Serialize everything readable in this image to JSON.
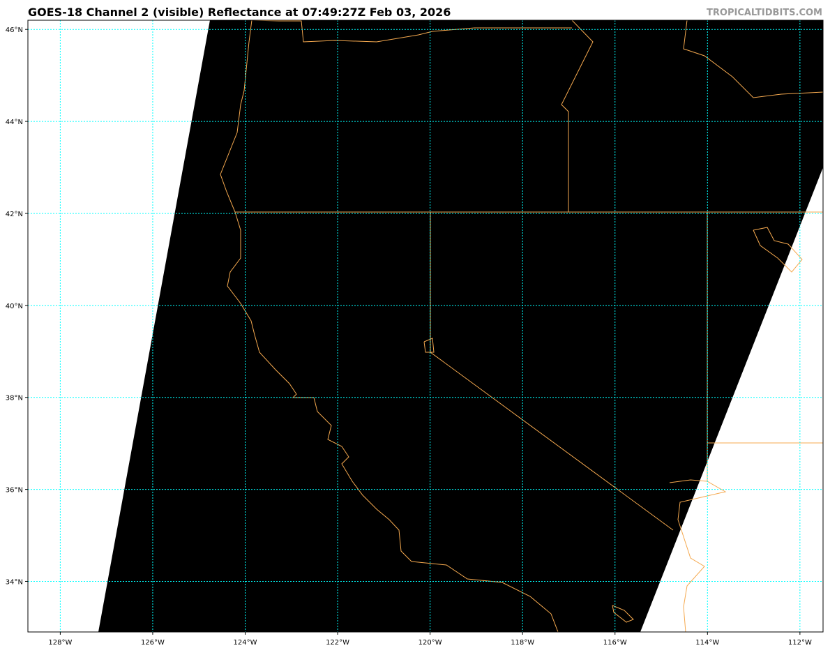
{
  "title": "GOES-18 Channel 2 (visible) Reflectance at 07:49:27Z Feb 03, 2026",
  "credit": "TROPICALTIDBITS.COM",
  "map": {
    "lat_ticks": [
      {
        "value": 46,
        "label": "46°N"
      },
      {
        "value": 44,
        "label": "44°N"
      },
      {
        "value": 42,
        "label": "42°N"
      },
      {
        "value": 40,
        "label": "40°N"
      },
      {
        "value": 38,
        "label": "38°N"
      },
      {
        "value": 36,
        "label": "36°N"
      },
      {
        "value": 34,
        "label": "34°N"
      }
    ],
    "lon_ticks": [
      {
        "value": -128,
        "label": "128°W"
      },
      {
        "value": -126,
        "label": "126°W"
      },
      {
        "value": -124,
        "label": "124°W"
      },
      {
        "value": -122,
        "label": "122°W"
      },
      {
        "value": -120,
        "label": "120°W"
      },
      {
        "value": -118,
        "label": "118°W"
      },
      {
        "value": -116,
        "label": "116°W"
      },
      {
        "value": -114,
        "label": "114°W"
      },
      {
        "value": -112,
        "label": "112°W"
      }
    ],
    "extent": {
      "lon_min": -128.7,
      "lon_max": -111.5,
      "lat_min": 32.9,
      "lat_max": 46.2
    },
    "colors": {
      "imagery": "#000000",
      "no_data": "#ffffff",
      "gridlines": "#00ffff",
      "borders": "#f5a623"
    }
  }
}
